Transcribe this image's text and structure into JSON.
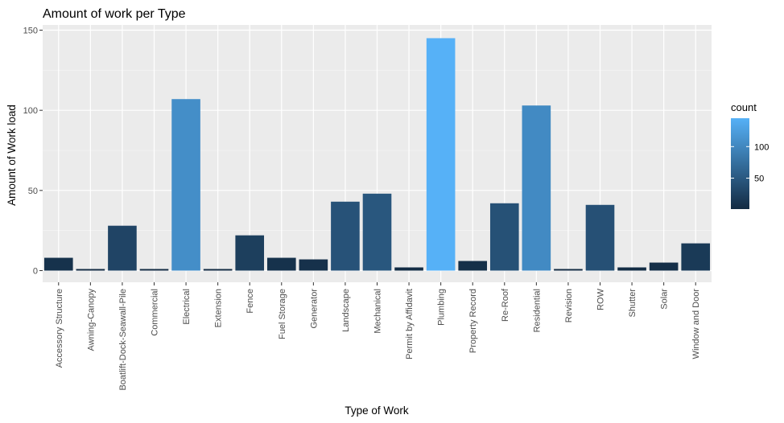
{
  "chart_data": {
    "type": "bar",
    "title": "Amount of work per Type",
    "xlabel": "Type of Work",
    "ylabel": "Amount of Work load",
    "categories": [
      "Accessory Structure",
      "Awning-Canopy",
      "Boatlift-Dock-Seawall-Pile",
      "Commercial",
      "Electrical",
      "Extension",
      "Fence",
      "Fuel Storage",
      "Generator",
      "Landscape",
      "Mechanical",
      "Permit by Affidavit",
      "Plumbing",
      "Property Record",
      "Re-Roof",
      "Residential",
      "Revision",
      "ROW",
      "Shutter",
      "Solar",
      "Window and Door"
    ],
    "values": [
      8,
      1,
      28,
      1,
      107,
      1,
      22,
      8,
      7,
      43,
      48,
      2,
      145,
      6,
      42,
      103,
      1,
      41,
      2,
      5,
      17
    ],
    "ylim": [
      0,
      150
    ],
    "yticks": [
      0,
      50,
      100,
      150
    ],
    "grid": true,
    "legend": {
      "title": "count",
      "ticks": [
        50,
        100
      ],
      "range": [
        1,
        145
      ],
      "colors": [
        "#132B43",
        "#56B1F7"
      ],
      "placement": "right"
    },
    "colors": {
      "panel": "#EBEBEB",
      "grid_major": "#FFFFFF"
    }
  }
}
